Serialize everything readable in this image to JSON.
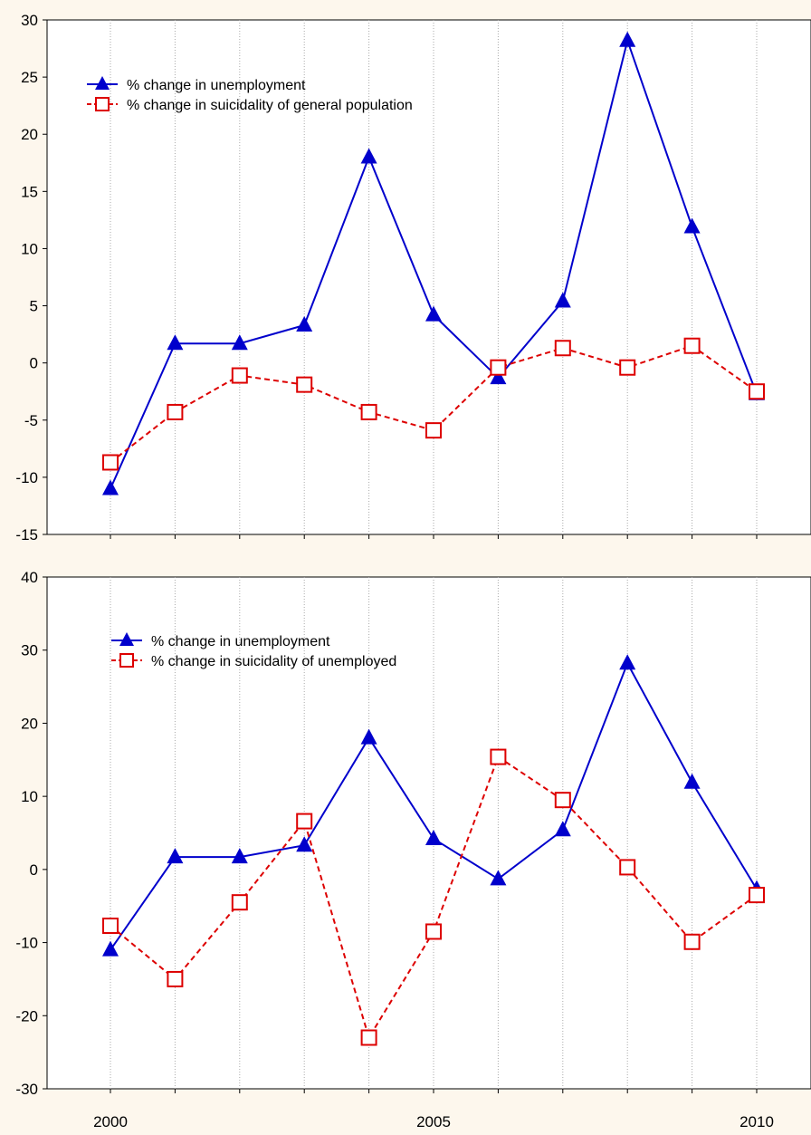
{
  "colors": {
    "background": "#fdf7ed",
    "plot_background": "#ffffff",
    "unemployment": "#0000cc",
    "suicidality": "#dd0000",
    "grid": "#aaaaaa"
  },
  "chart_data": [
    {
      "type": "line",
      "grid": "vertical dotted lines",
      "legend_position": "top-left",
      "x": [
        2000,
        2001,
        2002,
        2003,
        2004,
        2005,
        2006,
        2007,
        2008,
        2009,
        2010
      ],
      "xlim": [
        2000,
        2010
      ],
      "x_tick_labels": [
        "2000",
        "2005",
        "2010"
      ],
      "ylim": [
        -15,
        30
      ],
      "yticks": [
        -15,
        -10,
        -5,
        0,
        5,
        10,
        15,
        20,
        25,
        30
      ],
      "series": [
        {
          "name": "% change in unemployment",
          "marker": "triangle",
          "line": "solid",
          "color": "#0000cc",
          "values": [
            -11,
            1.7,
            1.7,
            3.3,
            18,
            4.2,
            -1.3,
            5.4,
            28.2,
            11.9,
            -2.7
          ]
        },
        {
          "name": "% change in suicidality of general population",
          "marker": "square",
          "line": "dashed",
          "color": "#dd0000",
          "values": [
            -8.7,
            -4.3,
            -1.1,
            -1.9,
            -4.3,
            -5.9,
            -0.4,
            1.3,
            -0.4,
            1.5,
            -2.5
          ]
        }
      ]
    },
    {
      "type": "line",
      "grid": "vertical dotted lines",
      "legend_position": "top-left",
      "x": [
        2000,
        2001,
        2002,
        2003,
        2004,
        2005,
        2006,
        2007,
        2008,
        2009,
        2010
      ],
      "xlim": [
        2000,
        2010
      ],
      "x_tick_labels": [
        "2000",
        "2005",
        "2010"
      ],
      "ylim": [
        -30,
        40
      ],
      "yticks": [
        -30,
        -20,
        -10,
        0,
        10,
        20,
        30,
        40
      ],
      "series": [
        {
          "name": "% change in unemployment",
          "marker": "triangle",
          "line": "solid",
          "color": "#0000cc",
          "values": [
            -11,
            1.7,
            1.7,
            3.3,
            18,
            4.2,
            -1.3,
            5.4,
            28.2,
            11.9,
            -2.7
          ]
        },
        {
          "name": "% change in suicidality of unemployed",
          "marker": "square",
          "line": "dashed",
          "color": "#dd0000",
          "values": [
            -7.7,
            -15,
            -4.5,
            6.6,
            -23,
            -8.5,
            15.4,
            9.5,
            0.3,
            -9.9,
            -3.5
          ]
        }
      ]
    }
  ]
}
